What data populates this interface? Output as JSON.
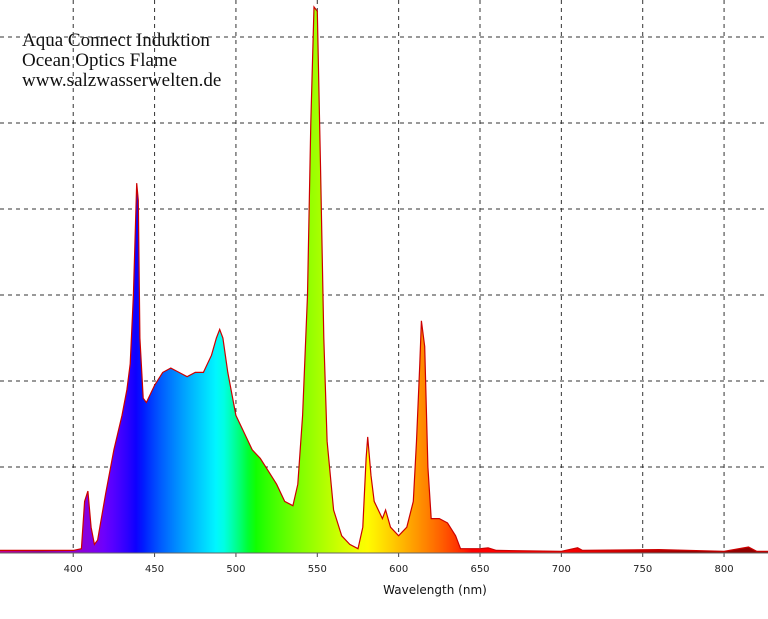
{
  "chart_data": {
    "type": "area",
    "title_lines": [
      "Aqua Connect Induktion",
      "Ocean Optics Flame",
      "www.salzwasserwelten.de"
    ],
    "x_label": "Wavelength (nm)",
    "x": [
      355,
      400,
      405,
      407,
      409,
      411,
      413,
      415,
      420,
      425,
      430,
      433,
      435,
      437,
      439,
      440,
      441,
      443,
      445,
      450,
      455,
      460,
      465,
      470,
      475,
      480,
      485,
      488,
      490,
      492,
      495,
      500,
      505,
      510,
      515,
      520,
      525,
      530,
      535,
      538,
      541,
      544,
      546,
      548,
      550,
      552,
      554,
      556,
      560,
      565,
      570,
      575,
      578,
      580,
      581,
      583,
      585,
      590,
      592,
      595,
      600,
      605,
      609,
      611,
      613,
      614,
      616,
      618,
      620,
      625,
      630,
      635,
      638,
      650,
      655,
      660,
      700,
      710,
      713,
      760,
      800,
      815,
      820,
      827
    ],
    "values": [
      0.03,
      0.03,
      0.05,
      0.6,
      0.72,
      0.3,
      0.1,
      0.15,
      0.7,
      1.2,
      1.6,
      1.9,
      2.2,
      3.0,
      4.3,
      4.1,
      2.5,
      1.8,
      1.75,
      1.95,
      2.1,
      2.15,
      2.1,
      2.05,
      2.1,
      2.1,
      2.3,
      2.5,
      2.6,
      2.5,
      2.1,
      1.6,
      1.4,
      1.2,
      1.1,
      0.95,
      0.8,
      0.6,
      0.55,
      0.8,
      1.6,
      3.0,
      5.0,
      6.35,
      6.3,
      4.5,
      2.5,
      1.3,
      0.5,
      0.2,
      0.1,
      0.05,
      0.3,
      1.1,
      1.35,
      0.9,
      0.6,
      0.4,
      0.5,
      0.3,
      0.2,
      0.3,
      0.6,
      1.3,
      2.2,
      2.7,
      2.4,
      1.0,
      0.4,
      0.4,
      0.35,
      0.2,
      0.05,
      0.05,
      0.06,
      0.03,
      0.02,
      0.06,
      0.03,
      0.04,
      0.02,
      0.07,
      0.02,
      0.02
    ],
    "xlim": [
      355,
      827
    ],
    "ylim": [
      0,
      6.43
    ],
    "xticks": [
      400,
      450,
      500,
      550,
      600,
      650,
      700,
      750,
      800
    ],
    "ygrid": [
      1,
      2,
      3,
      4,
      5,
      6
    ],
    "grid": true,
    "fill": "spectrum",
    "line_color": "#cc0000"
  }
}
